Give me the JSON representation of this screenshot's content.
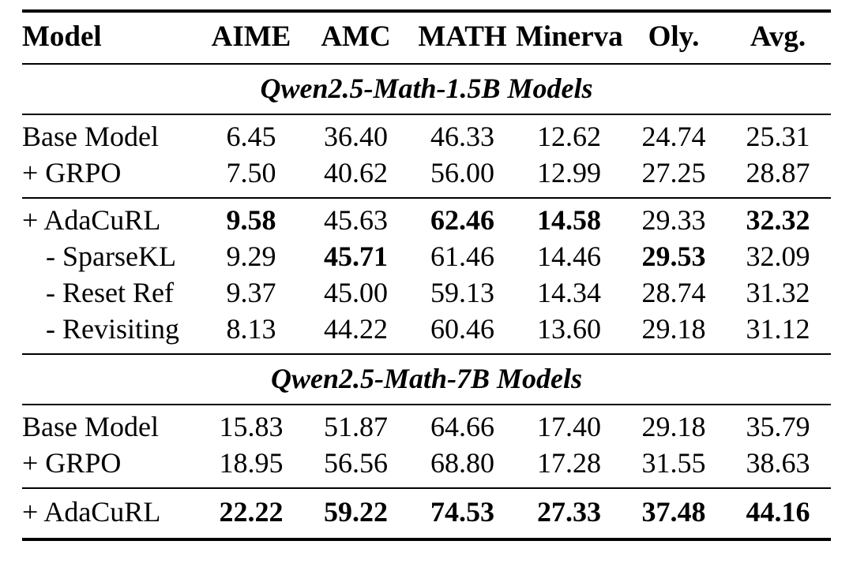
{
  "table": {
    "columns": [
      "Model",
      "AIME",
      "AMC",
      "MATH",
      "Minerva",
      "Oly.",
      "Avg."
    ],
    "sections": [
      {
        "title": "Qwen2.5-Math-1.5B Models",
        "groups": [
          {
            "rows": [
              {
                "label": "Base Model",
                "cells": [
                  {
                    "t": "6.45",
                    "b": false
                  },
                  {
                    "t": "36.40",
                    "b": false
                  },
                  {
                    "t": "46.33",
                    "b": false
                  },
                  {
                    "t": "12.62",
                    "b": false
                  },
                  {
                    "t": "24.74",
                    "b": false
                  },
                  {
                    "t": "25.31",
                    "b": false
                  }
                ]
              },
              {
                "label": "+ GRPO",
                "cells": [
                  {
                    "t": "7.50",
                    "b": false
                  },
                  {
                    "t": "40.62",
                    "b": false
                  },
                  {
                    "t": "56.00",
                    "b": false
                  },
                  {
                    "t": "12.99",
                    "b": false
                  },
                  {
                    "t": "27.25",
                    "b": false
                  },
                  {
                    "t": "28.87",
                    "b": false
                  }
                ]
              }
            ]
          },
          {
            "rows": [
              {
                "label": "+ AdaCuRL",
                "cells": [
                  {
                    "t": "9.58",
                    "b": true
                  },
                  {
                    "t": "45.63",
                    "b": false
                  },
                  {
                    "t": "62.46",
                    "b": true
                  },
                  {
                    "t": "14.58",
                    "b": true
                  },
                  {
                    "t": "29.33",
                    "b": false
                  },
                  {
                    "t": "32.32",
                    "b": true
                  }
                ]
              },
              {
                "label": "- SparseKL",
                "cells": [
                  {
                    "t": "9.29",
                    "b": false
                  },
                  {
                    "t": "45.71",
                    "b": true
                  },
                  {
                    "t": "61.46",
                    "b": false
                  },
                  {
                    "t": "14.46",
                    "b": false
                  },
                  {
                    "t": "29.53",
                    "b": true
                  },
                  {
                    "t": "32.09",
                    "b": false
                  }
                ]
              },
              {
                "label": "- Reset Ref",
                "cells": [
                  {
                    "t": "9.37",
                    "b": false
                  },
                  {
                    "t": "45.00",
                    "b": false
                  },
                  {
                    "t": "59.13",
                    "b": false
                  },
                  {
                    "t": "14.34",
                    "b": false
                  },
                  {
                    "t": "28.74",
                    "b": false
                  },
                  {
                    "t": "31.32",
                    "b": false
                  }
                ]
              },
              {
                "label": "- Revisiting",
                "cells": [
                  {
                    "t": "8.13",
                    "b": false
                  },
                  {
                    "t": "44.22",
                    "b": false
                  },
                  {
                    "t": "60.46",
                    "b": false
                  },
                  {
                    "t": "13.60",
                    "b": false
                  },
                  {
                    "t": "29.18",
                    "b": false
                  },
                  {
                    "t": "31.12",
                    "b": false
                  }
                ]
              }
            ]
          }
        ]
      },
      {
        "title": "Qwen2.5-Math-7B Models",
        "groups": [
          {
            "rows": [
              {
                "label": "Base Model",
                "cells": [
                  {
                    "t": "15.83",
                    "b": false
                  },
                  {
                    "t": "51.87",
                    "b": false
                  },
                  {
                    "t": "64.66",
                    "b": false
                  },
                  {
                    "t": "17.40",
                    "b": false
                  },
                  {
                    "t": "29.18",
                    "b": false
                  },
                  {
                    "t": "35.79",
                    "b": false
                  }
                ]
              },
              {
                "label": "+ GRPO",
                "cells": [
                  {
                    "t": "18.95",
                    "b": false
                  },
                  {
                    "t": "56.56",
                    "b": false
                  },
                  {
                    "t": "68.80",
                    "b": false
                  },
                  {
                    "t": "17.28",
                    "b": false
                  },
                  {
                    "t": "31.55",
                    "b": false
                  },
                  {
                    "t": "38.63",
                    "b": false
                  }
                ]
              }
            ]
          },
          {
            "rows": [
              {
                "label": "+ AdaCuRL",
                "cells": [
                  {
                    "t": "22.22",
                    "b": true
                  },
                  {
                    "t": "59.22",
                    "b": true
                  },
                  {
                    "t": "74.53",
                    "b": true
                  },
                  {
                    "t": "27.33",
                    "b": true
                  },
                  {
                    "t": "37.48",
                    "b": true
                  },
                  {
                    "t": "44.16",
                    "b": true
                  }
                ]
              }
            ]
          }
        ]
      }
    ]
  }
}
